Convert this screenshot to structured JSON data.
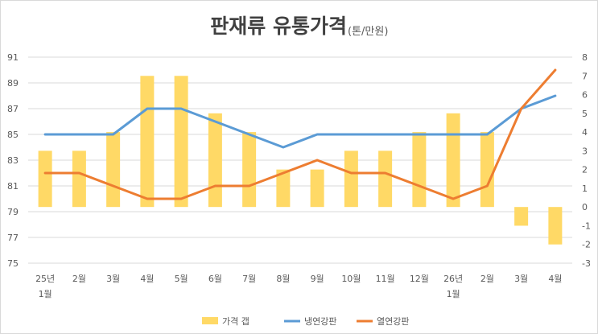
{
  "chart_data": {
    "type": "bar+line",
    "title": "판재류 유통가격",
    "subtitle": "(톤/만원)",
    "categories": [
      {
        "line1": "25년",
        "line2": "1월"
      },
      {
        "line1": "2월",
        "line2": ""
      },
      {
        "line1": "3월",
        "line2": ""
      },
      {
        "line1": "4월",
        "line2": ""
      },
      {
        "line1": "5월",
        "line2": ""
      },
      {
        "line1": "6월",
        "line2": ""
      },
      {
        "line1": "7월",
        "line2": ""
      },
      {
        "line1": "8월",
        "line2": ""
      },
      {
        "line1": "9월",
        "line2": ""
      },
      {
        "line1": "10월",
        "line2": ""
      },
      {
        "line1": "11월",
        "line2": ""
      },
      {
        "line1": "12월",
        "line2": ""
      },
      {
        "line1": "26년",
        "line2": "1월"
      },
      {
        "line1": "2월",
        "line2": ""
      },
      {
        "line1": "3월",
        "line2": ""
      },
      {
        "line1": "4월",
        "line2": ""
      }
    ],
    "left_axis": {
      "min": 75,
      "max": 91,
      "step": 2,
      "ticks": [
        75,
        77,
        79,
        81,
        83,
        85,
        87,
        89,
        91
      ]
    },
    "right_axis": {
      "min": -3,
      "max": 8,
      "step": 1,
      "ticks": [
        -3,
        -2,
        -1,
        0,
        1,
        2,
        3,
        4,
        5,
        6,
        7,
        8
      ]
    },
    "series": [
      {
        "name": "가격 갭",
        "kind": "bar",
        "axis": "right",
        "color": "#ffd966",
        "values": [
          3,
          3,
          4,
          7,
          7,
          5,
          4,
          2,
          2,
          3,
          3,
          4,
          5,
          4,
          -1,
          -2
        ]
      },
      {
        "name": "냉연강판",
        "kind": "line",
        "axis": "left",
        "color": "#5b9bd5",
        "values": [
          85,
          85,
          85,
          87,
          87,
          86,
          85,
          84,
          85,
          85,
          85,
          85,
          85,
          85,
          87,
          88
        ]
      },
      {
        "name": "열연강판",
        "kind": "line",
        "axis": "left",
        "color": "#ed7d31",
        "values": [
          82,
          82,
          81,
          80,
          80,
          81,
          81,
          82,
          83,
          82,
          82,
          81,
          80,
          81,
          87,
          90
        ]
      }
    ],
    "legend_position": "bottom",
    "grid": true
  }
}
